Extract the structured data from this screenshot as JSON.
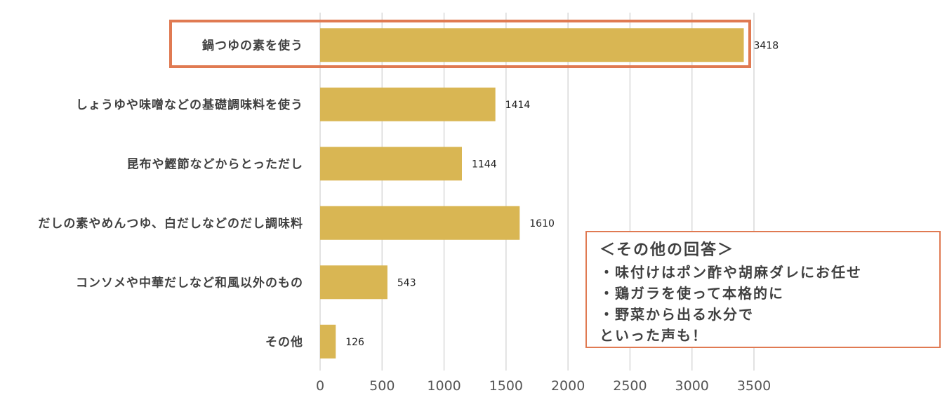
{
  "chart_data": {
    "type": "bar",
    "orientation": "horizontal",
    "categories": [
      "鍋つゆの素を使う",
      "しょうゆや味噌などの基礎調味料を使う",
      "昆布や鰹節などからとっただし",
      "だしの素やめんつゆ、白だしなどのだし調味料",
      "コンソメや中華だしなど和風以外のもの",
      "その他"
    ],
    "values": [
      3418,
      1414,
      1144,
      1610,
      543,
      126
    ],
    "value_labels": [
      "3418",
      "1414",
      "1144",
      "1610",
      "543",
      "126"
    ],
    "x_ticks": [
      "0",
      "500",
      "1000",
      "1500",
      "2000",
      "2500",
      "3000",
      "3500"
    ],
    "xlim": [
      0,
      3500
    ],
    "grid": "vertical",
    "bar_color": "#d9b653",
    "highlight": {
      "category_index": 0,
      "color": "#e07a52"
    }
  },
  "note": {
    "title": "＜その他の回答＞",
    "lines": [
      "・味付けはポン酢や胡麻ダレにお任せ",
      "・鶏ガラを使って本格的に",
      "・野菜から出る水分で",
      "といった声も！"
    ],
    "border_color": "#e07a52"
  }
}
